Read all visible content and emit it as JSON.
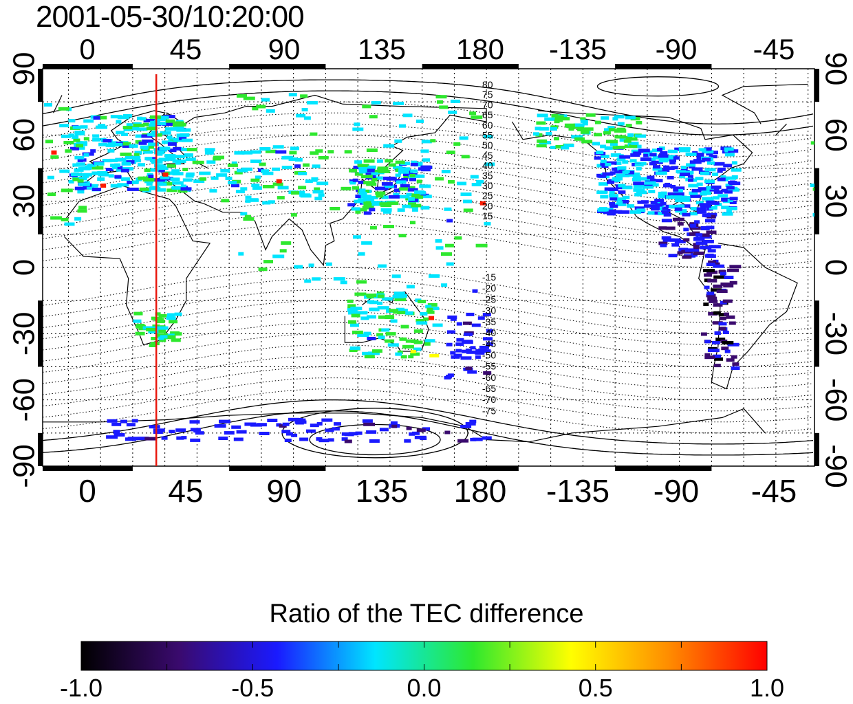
{
  "title": "2001-05-30/10:20:00",
  "map": {
    "top_lon_labels": [
      "0",
      "45",
      "90",
      "135",
      "180",
      "-135",
      "-90",
      "-45"
    ],
    "bottom_lon_labels": [
      "0",
      "45",
      "90",
      "135",
      "180",
      "-135",
      "-90",
      "-45"
    ],
    "left_lat_labels": [
      "90",
      "60",
      "30",
      "0",
      "-30",
      "-60",
      "-90"
    ],
    "right_lat_labels": [
      "90",
      "60",
      "30",
      "0",
      "-30",
      "-60",
      "-90"
    ],
    "marker_lon": 26,
    "marker_color": "#e8170d",
    "contour_labels_north": [
      "80",
      "75",
      "70",
      "65",
      "60",
      "55",
      "50",
      "45",
      "40",
      "35",
      "30",
      "25",
      "20",
      "15"
    ],
    "contour_labels_south": [
      "-15",
      "-20",
      "-25",
      "-30",
      "-35",
      "-40",
      "-45",
      "-50",
      "-55",
      "-60",
      "-65",
      "-70",
      "-75"
    ]
  },
  "colorbar": {
    "title": "Ratio of the TEC difference",
    "min": -1.0,
    "max": 1.0,
    "tick_labels": [
      "-1.0",
      "-0.5",
      "0.0",
      "0.5",
      "1.0"
    ],
    "colors": [
      "#000000",
      "#3a0a6e",
      "#1a1aff",
      "#00e5ff",
      "#2ee82e",
      "#ffff00",
      "#ff8c00",
      "#ff0000"
    ]
  }
}
